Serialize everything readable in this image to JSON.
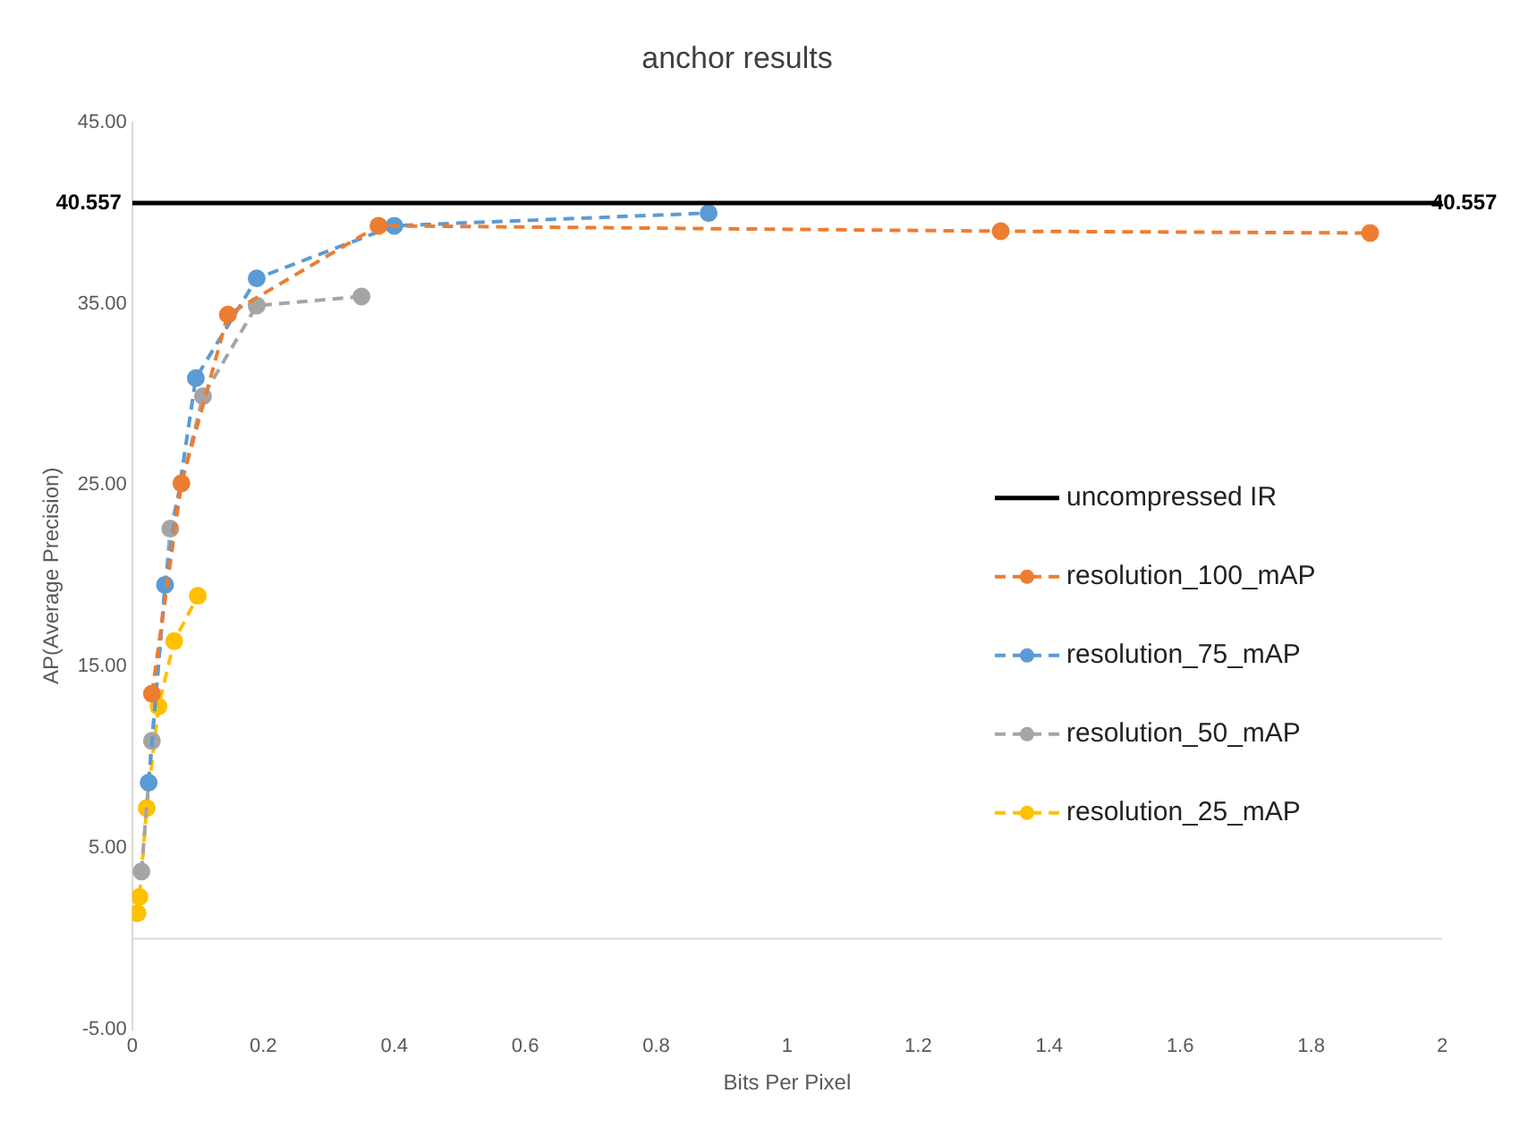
{
  "chart_data": {
    "type": "line",
    "title": "anchor results",
    "xlabel": "Bits Per Pixel",
    "ylabel": "AP(Average Precision)",
    "xlim": [
      0,
      2
    ],
    "xticks": [
      0,
      0.2,
      0.4,
      0.6,
      0.8,
      1,
      1.2,
      1.4,
      1.6,
      1.8,
      2
    ],
    "ylim": [
      -5,
      45
    ],
    "yticks": [
      {
        "value": -5,
        "label": "-5.00"
      },
      {
        "value": 5,
        "label": "5.00"
      },
      {
        "value": 15,
        "label": "15.00"
      },
      {
        "value": 25,
        "label": "25.00"
      },
      {
        "value": 35,
        "label": "35.00"
      },
      {
        "value": 45,
        "label": "45.00"
      }
    ],
    "grid": false,
    "legend": "right",
    "marker": "circle",
    "line_style": "dashed",
    "series": [
      {
        "name": "uncompressed IR",
        "color": "#000000",
        "x": [
          0,
          2
        ],
        "values": [
          40.557,
          40.557
        ],
        "value_labels": [
          "40.557",
          "40.557"
        ],
        "marker": "none",
        "line_style": "solid"
      },
      {
        "name": "resolution_100_mAP",
        "color": "#ed7d31",
        "x": [
          0.03,
          0.075,
          0.146,
          0.376,
          1.326,
          1.89
        ],
        "values": [
          13.5,
          25.1,
          34.4,
          39.3,
          39.0,
          38.9
        ]
      },
      {
        "name": "resolution_75_mAP",
        "color": "#5b9bd5",
        "x": [
          0.025,
          0.05,
          0.097,
          0.19,
          0.4,
          0.88
        ],
        "values": [
          8.6,
          19.5,
          30.9,
          36.4,
          39.3,
          40.0
        ]
      },
      {
        "name": "resolution_50_mAP",
        "color": "#a5a5a5",
        "x": [
          0.014,
          0.03,
          0.058,
          0.108,
          0.19,
          0.35
        ],
        "values": [
          3.7,
          10.9,
          22.6,
          29.9,
          34.9,
          35.4
        ]
      },
      {
        "name": "resolution_25_mAP",
        "color": "#ffc000",
        "x": [
          0.008,
          0.011,
          0.022,
          0.04,
          0.064,
          0.1
        ],
        "values": [
          1.4,
          2.3,
          7.2,
          12.8,
          16.4,
          18.9
        ]
      }
    ]
  }
}
